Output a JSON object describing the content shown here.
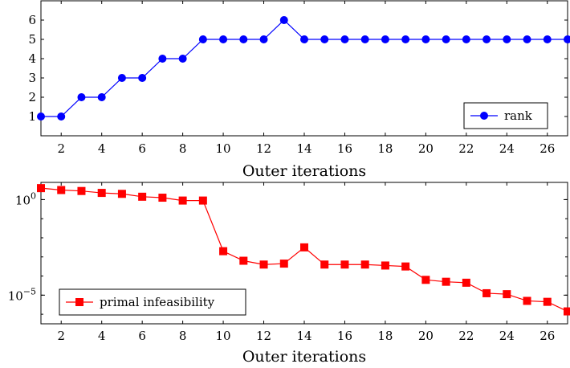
{
  "chart_data": [
    {
      "type": "line",
      "title": "",
      "xlabel": "Outer iterations",
      "ylabel": "",
      "xlim": [
        1,
        27
      ],
      "ylim": [
        0,
        7
      ],
      "x_ticks": [
        2,
        4,
        6,
        8,
        10,
        12,
        14,
        16,
        18,
        20,
        22,
        24,
        26
      ],
      "y_ticks": [
        1,
        2,
        3,
        4,
        5,
        6
      ],
      "legend_position": "bottom-right",
      "colors": {
        "series": "#0000ff"
      },
      "series": [
        {
          "name": "rank",
          "marker": "circle",
          "x": [
            1,
            2,
            3,
            4,
            5,
            6,
            7,
            8,
            9,
            10,
            11,
            12,
            13,
            14,
            15,
            16,
            17,
            18,
            19,
            20,
            21,
            22,
            23,
            24,
            25,
            26,
            27
          ],
          "values": [
            1,
            1,
            2,
            2,
            3,
            3,
            4,
            4,
            5,
            5,
            5,
            5,
            6,
            5,
            5,
            5,
            5,
            5,
            5,
            5,
            5,
            5,
            5,
            5,
            5,
            5,
            5
          ]
        }
      ]
    },
    {
      "type": "line",
      "title": "",
      "xlabel": "Outer iterations",
      "ylabel": "",
      "y_scale": "log",
      "xlim": [
        1,
        27
      ],
      "ylim_exponent": [
        -6.5,
        0.9
      ],
      "x_ticks": [
        2,
        4,
        6,
        8,
        10,
        12,
        14,
        16,
        18,
        20,
        22,
        24,
        26
      ],
      "y_ticks": [
        {
          "exp": 0,
          "label": "10",
          "sup": "0"
        },
        {
          "exp": -5,
          "label": "10",
          "sup": "−5"
        }
      ],
      "legend_position": "bottom-left",
      "colors": {
        "series": "#ff0000"
      },
      "series": [
        {
          "name": "primal infeasibility",
          "marker": "square",
          "x": [
            1,
            2,
            3,
            4,
            5,
            6,
            7,
            8,
            9,
            10,
            11,
            12,
            13,
            14,
            15,
            16,
            17,
            18,
            19,
            20,
            21,
            22,
            23,
            24,
            25,
            26,
            27
          ],
          "log10_values": [
            0.6,
            0.5,
            0.45,
            0.35,
            0.3,
            0.15,
            0.1,
            -0.05,
            -0.05,
            -2.7,
            -3.2,
            -3.4,
            -3.35,
            -2.5,
            -3.4,
            -3.4,
            -3.4,
            -3.45,
            -3.5,
            -4.2,
            -4.3,
            -4.35,
            -4.9,
            -4.95,
            -5.3,
            -5.35,
            -5.85
          ]
        }
      ]
    }
  ]
}
